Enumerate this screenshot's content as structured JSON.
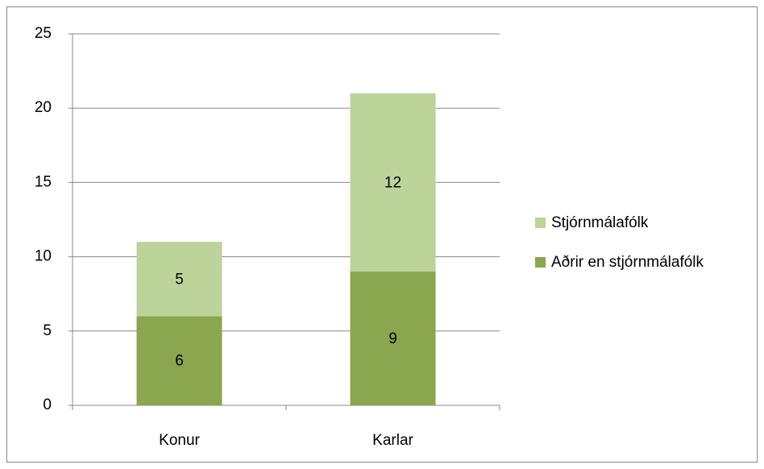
{
  "chart_data": {
    "type": "stacked_bar",
    "categories": [
      "Konur",
      "Karlar"
    ],
    "series": [
      {
        "name": "Aðrir en stjórnmálafólk",
        "color": "#8aa64e",
        "values": [
          6,
          9
        ]
      },
      {
        "name": "Stjórnmálafólk",
        "color": "#bcd39a",
        "values": [
          5,
          12
        ]
      }
    ],
    "ylim": [
      0,
      25
    ],
    "yticks": [
      0,
      5,
      10,
      15,
      20,
      25
    ],
    "grid": true,
    "legend": "right"
  }
}
